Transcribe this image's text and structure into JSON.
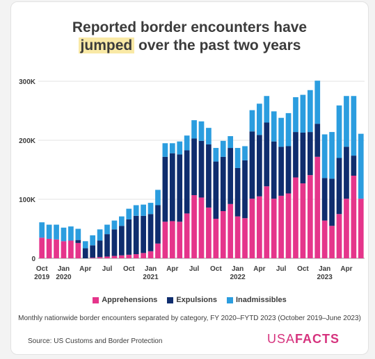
{
  "title": {
    "line1": "Reported border encounters have",
    "highlight": "jumped",
    "line2_rest": " over the past two years"
  },
  "legend": [
    "Apprehensions",
    "Expulsions",
    "Inadmissibles"
  ],
  "subtitle": "Monthly nationwide border encounters separated by category, FY 2020–FYTD 2023 (October 2019–June 2023)",
  "source": "Source: US Customs and Border Protection",
  "logo": {
    "light": "USA",
    "bold": "FACTS"
  },
  "colors": {
    "apprehensions": "#e5358b",
    "expulsions": "#0f2d6e",
    "inadmissibles": "#2b9ddf",
    "highlight": "#f9e9a6",
    "brand": "#d6337e"
  },
  "chart_data": {
    "type": "bar",
    "stacked": true,
    "ylim": [
      0,
      300000
    ],
    "yticks": [
      {
        "value": 0,
        "label": "0"
      },
      {
        "value": 100000,
        "label": "100K"
      },
      {
        "value": 200000,
        "label": "200K"
      },
      {
        "value": 300000,
        "label": "300K"
      }
    ],
    "xticks": [
      {
        "index": 0,
        "label": [
          "Oct",
          "2019"
        ]
      },
      {
        "index": 3,
        "label": [
          "Jan",
          "2020"
        ]
      },
      {
        "index": 6,
        "label": [
          "Apr"
        ]
      },
      {
        "index": 9,
        "label": [
          "Jul"
        ]
      },
      {
        "index": 12,
        "label": [
          "Oct"
        ]
      },
      {
        "index": 15,
        "label": [
          "Jan",
          "2021"
        ]
      },
      {
        "index": 18,
        "label": [
          "Apr"
        ]
      },
      {
        "index": 21,
        "label": [
          "Jul"
        ]
      },
      {
        "index": 24,
        "label": [
          "Oct"
        ]
      },
      {
        "index": 27,
        "label": [
          "Jan",
          "2022"
        ]
      },
      {
        "index": 30,
        "label": [
          "Apr"
        ]
      },
      {
        "index": 33,
        "label": [
          "Jul"
        ]
      },
      {
        "index": 36,
        "label": [
          "Oct"
        ]
      },
      {
        "index": 39,
        "label": [
          "Jan",
          "2023"
        ]
      },
      {
        "index": 42,
        "label": [
          "Apr"
        ]
      }
    ],
    "categories": [
      "2019-10",
      "2019-11",
      "2019-12",
      "2020-01",
      "2020-02",
      "2020-03",
      "2020-04",
      "2020-05",
      "2020-06",
      "2020-07",
      "2020-08",
      "2020-09",
      "2020-10",
      "2020-11",
      "2020-12",
      "2021-01",
      "2021-02",
      "2021-03",
      "2021-04",
      "2021-05",
      "2021-06",
      "2021-07",
      "2021-08",
      "2021-09",
      "2021-10",
      "2021-11",
      "2021-12",
      "2022-01",
      "2022-02",
      "2022-03",
      "2022-04",
      "2022-05",
      "2022-06",
      "2022-07",
      "2022-08",
      "2022-09",
      "2022-10",
      "2022-11",
      "2022-12",
      "2023-01",
      "2023-02",
      "2023-03",
      "2023-04",
      "2023-05",
      "2023-06"
    ],
    "series": [
      {
        "name": "Apprehensions",
        "values": [
          35000,
          33000,
          32000,
          29000,
          30000,
          26000,
          0,
          1000,
          2000,
          3000,
          4000,
          5000,
          6000,
          7000,
          9000,
          12000,
          25000,
          62000,
          63000,
          62000,
          76000,
          107000,
          103000,
          86000,
          67000,
          80000,
          92000,
          71000,
          68000,
          101000,
          105000,
          122000,
          101000,
          106000,
          110000,
          137000,
          127000,
          141000,
          172000,
          64000,
          55000,
          75000,
          101000,
          140000,
          101000
        ]
      },
      {
        "name": "Expulsions",
        "values": [
          0,
          0,
          0,
          0,
          0,
          5000,
          17000,
          21000,
          28000,
          38000,
          45000,
          50000,
          60000,
          65000,
          63000,
          63000,
          65000,
          110000,
          115000,
          114000,
          107000,
          96000,
          96000,
          107000,
          97000,
          92000,
          95000,
          82000,
          98000,
          114000,
          104000,
          108000,
          97000,
          83000,
          80000,
          77000,
          86000,
          73000,
          56000,
          72000,
          80000,
          95000,
          88000,
          34000,
          0
        ]
      },
      {
        "name": "Inadmissibles",
        "values": [
          26000,
          24000,
          25000,
          23000,
          24000,
          19000,
          12000,
          17000,
          19000,
          16000,
          15000,
          16000,
          18000,
          18000,
          19000,
          19000,
          26000,
          23000,
          17000,
          22000,
          25000,
          31000,
          33000,
          28000,
          23000,
          27000,
          20000,
          34000,
          24000,
          36000,
          53000,
          45000,
          51000,
          49000,
          56000,
          59000,
          64000,
          71000,
          73000,
          74000,
          79000,
          89000,
          86000,
          101000,
          110000
        ]
      }
    ]
  }
}
